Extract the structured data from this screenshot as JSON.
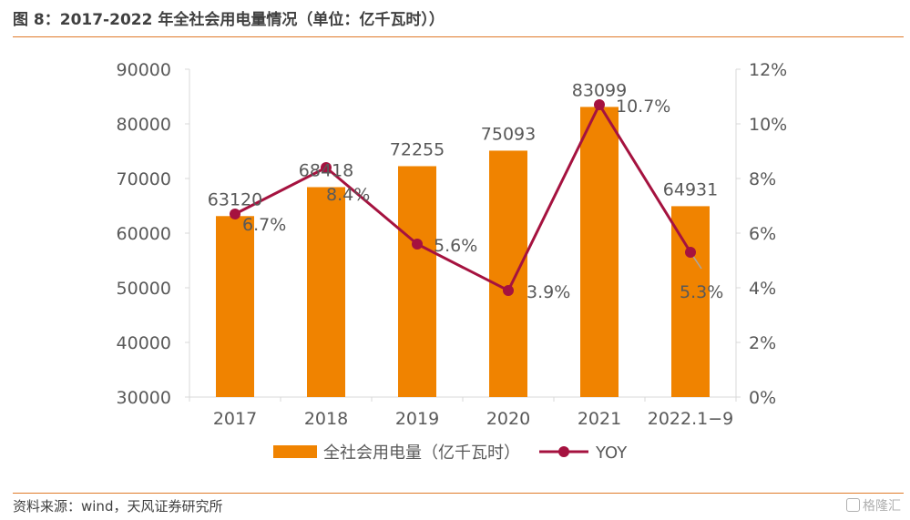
{
  "title": "图 8：2017-2022 年全社会用电量情况（单位：亿千瓦时））",
  "source": "资料来源：wind，天风证券研究所",
  "watermark": "格隆汇",
  "colors": {
    "bar": "#f08300",
    "line": "#a5123f",
    "rule": "#e07b2a",
    "text": "#595959"
  },
  "chart_data": {
    "type": "bar",
    "categories": [
      "2017",
      "2018",
      "2019",
      "2020",
      "2021",
      "2022.1−9"
    ],
    "series": [
      {
        "name": "全社会用电量（亿千瓦时）",
        "type": "bar",
        "axis": "left",
        "values": [
          63120,
          68418,
          72255,
          75093,
          83099,
          64931
        ],
        "labels": [
          "63120",
          "68418",
          "72255",
          "75093",
          "83099",
          "64931"
        ]
      },
      {
        "name": "YOY",
        "type": "line",
        "axis": "right",
        "values": [
          6.7,
          8.4,
          5.6,
          3.9,
          10.7,
          5.3
        ],
        "labels": [
          "6.7%",
          "8.4%",
          "5.6%",
          "3.9%",
          "10.7%",
          "5.3%"
        ]
      }
    ],
    "ylim": [
      30000,
      90000
    ],
    "y_ticks": [
      "30000",
      "40000",
      "50000",
      "60000",
      "70000",
      "80000",
      "90000"
    ],
    "y2lim": [
      0,
      12
    ],
    "y2_ticks": [
      "0%",
      "2%",
      "4%",
      "6%",
      "8%",
      "10%",
      "12%"
    ],
    "legend": "bottom",
    "grid": false
  }
}
